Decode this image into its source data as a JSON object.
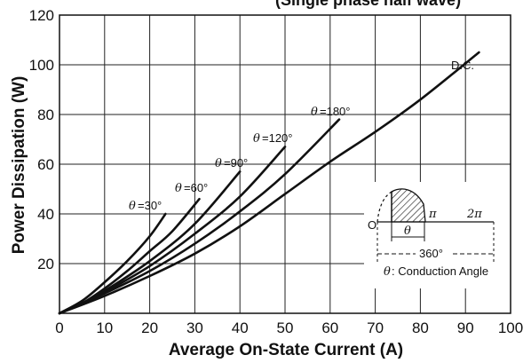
{
  "chart_data": {
    "type": "line",
    "title": "(Single phase half wave)",
    "xlabel": "Average On-State Current (A)",
    "ylabel": "Power Dissipation (W)",
    "xlim": [
      0,
      100
    ],
    "ylim": [
      0,
      120
    ],
    "x_ticks": [
      "0",
      "10",
      "20",
      "30",
      "40",
      "50",
      "60",
      "70",
      "80",
      "90",
      "100"
    ],
    "y_ticks": [
      "20",
      "40",
      "60",
      "80",
      "100",
      "120"
    ],
    "grid": true,
    "series": [
      {
        "name": "θ=30°",
        "x": [
          0,
          5,
          10,
          15,
          20,
          23.5
        ],
        "y": [
          0,
          5,
          12.5,
          21,
          31,
          40
        ]
      },
      {
        "name": "θ=60°",
        "x": [
          0,
          5,
          10,
          15,
          20,
          25,
          31
        ],
        "y": [
          0,
          4,
          10,
          17,
          25,
          33,
          46
        ]
      },
      {
        "name": "θ=90°",
        "x": [
          0,
          5,
          10,
          20,
          30,
          40
        ],
        "y": [
          0,
          4,
          9,
          21,
          36,
          57
        ]
      },
      {
        "name": "θ=120°",
        "x": [
          0,
          5,
          10,
          20,
          30,
          40,
          50
        ],
        "y": [
          0,
          4,
          8.5,
          19,
          32,
          47,
          67
        ]
      },
      {
        "name": "θ=180°",
        "x": [
          0,
          10,
          20,
          30,
          40,
          50,
          62
        ],
        "y": [
          0,
          8,
          17,
          28,
          41,
          56,
          78
        ]
      },
      {
        "name": "D.C.",
        "x": [
          0,
          10,
          20,
          30,
          40,
          50,
          60,
          70,
          80,
          93
        ],
        "y": [
          0,
          7,
          15,
          24,
          35,
          48,
          61,
          73,
          86,
          105
        ]
      }
    ],
    "annotations": {
      "dc": "D.C.",
      "theta_symbol": "θ",
      "theta_labels": [
        "=30°",
        "=60°",
        "=90°",
        "=120°",
        "=180°"
      ],
      "inset": {
        "pi": "π",
        "two_pi": "2π",
        "origin": "O",
        "theta": "θ",
        "span": "360°",
        "caption_symbol": "θ",
        "caption": ": Conduction Angle"
      }
    }
  },
  "colors": {
    "curve": "#111111",
    "grid": "#222222",
    "background": "#ffffff"
  }
}
